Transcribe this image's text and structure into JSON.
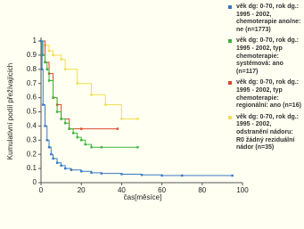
{
  "chart_data": {
    "type": "step",
    "xlabel": "čas[měsíce]",
    "ylabel": "Kumulativní podíl přežívajících",
    "xlim": [
      0,
      100
    ],
    "xticks": [
      0,
      20,
      40,
      60,
      80,
      100
    ],
    "ylim": [
      0,
      1
    ],
    "yticks": [
      0,
      0.1,
      0.2,
      0.3,
      0.4,
      0.5,
      0.6,
      0.7,
      0.8,
      0.9,
      1
    ],
    "series": [
      {
        "name": "věk dg: 0-70, rok dg.: 1995 - 2002, chemoterapie ano/ne: ne (n=1773)",
        "color": "#3a78c4",
        "x": [
          0,
          0.5,
          1,
          2,
          3,
          4,
          5,
          6,
          8,
          10,
          12,
          15,
          20,
          25,
          30,
          40,
          50,
          60,
          70,
          95
        ],
        "values": [
          1,
          0.8,
          0.55,
          0.4,
          0.3,
          0.25,
          0.2,
          0.17,
          0.14,
          0.12,
          0.1,
          0.09,
          0.08,
          0.07,
          0.065,
          0.06,
          0.055,
          0.05,
          0.05,
          0.05
        ]
      },
      {
        "name": "věk dg: 0-70, rok dg.: 1995 - 2002, typ chemoterapie: systémová: ano (n=117)",
        "color": "#3cb43c",
        "x": [
          0,
          1,
          2,
          3,
          4,
          6,
          8,
          10,
          12,
          14,
          16,
          18,
          20,
          22,
          25,
          30,
          48
        ],
        "values": [
          1,
          0.9,
          0.85,
          0.8,
          0.72,
          0.6,
          0.5,
          0.45,
          0.42,
          0.38,
          0.35,
          0.32,
          0.3,
          0.27,
          0.25,
          0.25,
          0.25
        ]
      },
      {
        "name": "věk dg: 0-70, rok dg.: 1995 - 2002, typ chemoterapie: regionální: ano (n=16)",
        "color": "#d8482a",
        "x": [
          0,
          2,
          4,
          6,
          8,
          10,
          14,
          20,
          38
        ],
        "values": [
          1,
          0.85,
          0.77,
          0.6,
          0.55,
          0.45,
          0.38,
          0.38,
          0.38
        ]
      },
      {
        "name": "věk dg: 0-70, rok dg.: 1995 - 2002, odstranění nádoru: R0 žádný reziduální nádor (n=35)",
        "color": "#f0e04a",
        "x": [
          0,
          2,
          4,
          6,
          10,
          12,
          18,
          25,
          32,
          40,
          48
        ],
        "values": [
          1,
          0.97,
          0.93,
          0.9,
          0.87,
          0.8,
          0.7,
          0.62,
          0.55,
          0.45,
          0.45
        ]
      }
    ]
  }
}
